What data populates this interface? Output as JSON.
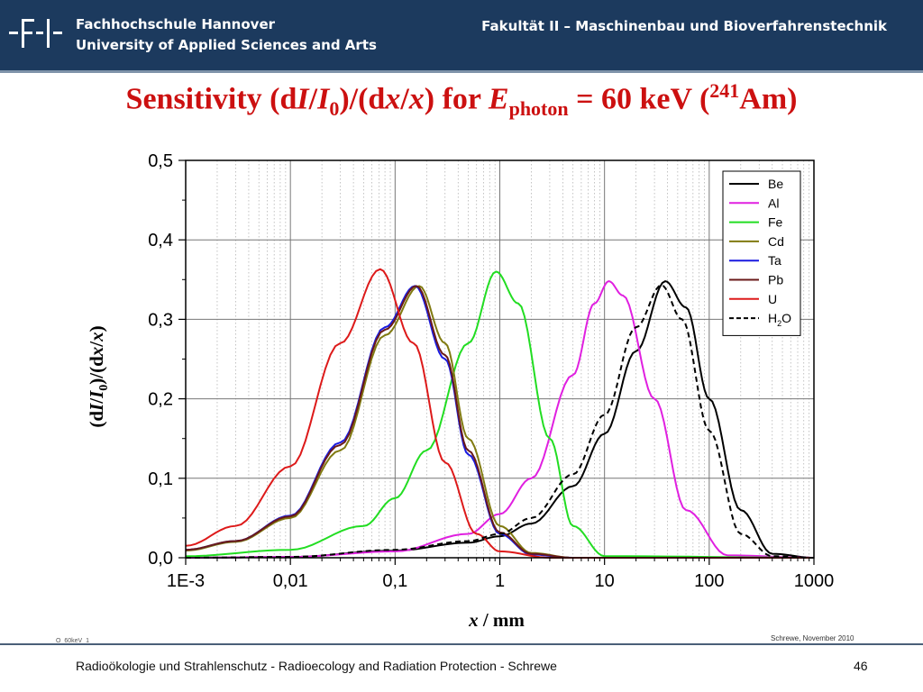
{
  "header": {
    "institution_line1": "Fachhochschule Hannover",
    "institution_line2": "University of Applied Sciences and Arts",
    "faculty": "Fakultät II – Maschinenbau und Bioverfahrenstechnik",
    "logo_text": "-F-I-"
  },
  "footer": {
    "text": "Radioökologie und Strahlenschutz - Radioecology and Radiation Protection - Schrewe",
    "page": "46",
    "credit": "Schrewe, November 2010",
    "slide_id": "O_60keV_1"
  },
  "colors": {
    "header_bg": "#1c3a5e",
    "title": "#cc1010",
    "Be": "#000000",
    "Al": "#e020e0",
    "Fe": "#22dd22",
    "Cd": "#807a10",
    "Ta": "#1a1ae0",
    "Pb": "#6a1a1a",
    "U": "#dd1a1a",
    "H2O": "#000000"
  },
  "chart_data": {
    "type": "line",
    "title_parts": {
      "a": "Sensitivity (d",
      "b": "I",
      "c": "/",
      "d": "I",
      "e": "0",
      "f": ")/(d",
      "g": "x",
      "h": "/",
      "i": "x",
      "j": ") for ",
      "k": "E",
      "l": "photon",
      "m": " = 60 keV (",
      "n": "241",
      "o": "Am)"
    },
    "xlabel_parts": {
      "a": "x",
      "b": " / mm"
    },
    "ylabel_parts": {
      "a": "(d",
      "b": "I",
      "c": "/",
      "d": "I",
      "e": "0",
      "f": ")/(d",
      "g": "x",
      "h": "/",
      "i": "x",
      "j": ")"
    },
    "x_scale": "log",
    "xlim": [
      0.001,
      1000
    ],
    "ylim": [
      0,
      0.5
    ],
    "x_ticks": [
      {
        "value": 0.001,
        "label": "1E-3"
      },
      {
        "value": 0.01,
        "label": "0,01"
      },
      {
        "value": 0.1,
        "label": "0,1"
      },
      {
        "value": 1,
        "label": "1"
      },
      {
        "value": 10,
        "label": "10"
      },
      {
        "value": 100,
        "label": "100"
      },
      {
        "value": 1000,
        "label": "1000"
      }
    ],
    "y_ticks": [
      {
        "value": 0.0,
        "label": "0,0"
      },
      {
        "value": 0.1,
        "label": "0,1"
      },
      {
        "value": 0.2,
        "label": "0,2"
      },
      {
        "value": 0.3,
        "label": "0,3"
      },
      {
        "value": 0.4,
        "label": "0,4"
      },
      {
        "value": 0.5,
        "label": "0,5"
      }
    ],
    "grid": true,
    "legend_position": "top-right",
    "series": [
      {
        "name": "Be",
        "peak_x": 38.0,
        "peak_y": 0.348,
        "dash": "solid",
        "x": [
          0.001,
          0.01,
          0.1,
          0.5,
          1,
          2,
          5,
          10,
          20,
          38,
          60,
          100,
          200,
          400,
          1000
        ],
        "y": [
          0.0,
          0.001,
          0.009,
          0.019,
          0.027,
          0.043,
          0.09,
          0.156,
          0.26,
          0.348,
          0.315,
          0.2,
          0.06,
          0.005,
          0.0
        ]
      },
      {
        "name": "Al",
        "peak_x": 11.0,
        "peak_y": 0.348,
        "dash": "solid",
        "x": [
          0.001,
          0.01,
          0.1,
          0.5,
          1,
          2,
          5,
          8,
          11,
          15,
          30,
          60,
          150,
          1000
        ],
        "y": [
          0.0,
          0.001,
          0.008,
          0.03,
          0.055,
          0.1,
          0.23,
          0.32,
          0.348,
          0.33,
          0.2,
          0.06,
          0.003,
          0.0
        ]
      },
      {
        "name": "Fe",
        "peak_x": 0.92,
        "peak_y": 0.36,
        "dash": "solid",
        "x": [
          0.001,
          0.01,
          0.05,
          0.1,
          0.2,
          0.5,
          0.92,
          1.5,
          3,
          5,
          10,
          1000
        ],
        "y": [
          0.002,
          0.01,
          0.04,
          0.075,
          0.135,
          0.27,
          0.36,
          0.32,
          0.15,
          0.04,
          0.002,
          0.0
        ]
      },
      {
        "name": "Cd",
        "peak_x": 0.17,
        "peak_y": 0.342,
        "dash": "solid",
        "x": [
          0.001,
          0.003,
          0.01,
          0.03,
          0.08,
          0.17,
          0.3,
          0.5,
          1,
          2,
          5,
          1000
        ],
        "y": [
          0.009,
          0.02,
          0.05,
          0.135,
          0.28,
          0.342,
          0.27,
          0.15,
          0.04,
          0.006,
          0.0,
          0.0
        ]
      },
      {
        "name": "Ta",
        "peak_x": 0.155,
        "peak_y": 0.342,
        "dash": "solid",
        "x": [
          0.001,
          0.003,
          0.01,
          0.03,
          0.08,
          0.155,
          0.3,
          0.5,
          1,
          2,
          5,
          1000
        ],
        "y": [
          0.01,
          0.021,
          0.053,
          0.145,
          0.29,
          0.342,
          0.25,
          0.13,
          0.03,
          0.004,
          0.0,
          0.0
        ]
      },
      {
        "name": "Pb",
        "peak_x": 0.16,
        "peak_y": 0.342,
        "dash": "solid",
        "x": [
          0.001,
          0.003,
          0.01,
          0.03,
          0.08,
          0.16,
          0.3,
          0.5,
          1,
          2,
          5,
          1000
        ],
        "y": [
          0.01,
          0.021,
          0.052,
          0.142,
          0.287,
          0.342,
          0.255,
          0.135,
          0.032,
          0.005,
          0.0,
          0.0
        ]
      },
      {
        "name": "U",
        "peak_x": 0.072,
        "peak_y": 0.363,
        "dash": "solid",
        "x": [
          0.001,
          0.003,
          0.01,
          0.03,
          0.072,
          0.15,
          0.3,
          0.6,
          1,
          3,
          1000
        ],
        "y": [
          0.015,
          0.04,
          0.115,
          0.27,
          0.363,
          0.27,
          0.12,
          0.03,
          0.008,
          0.0,
          0.0
        ]
      },
      {
        "name": "H",
        "name_sub": "2",
        "name_after": "O",
        "peak_x": 35.0,
        "peak_y": 0.343,
        "dash": "dashed",
        "x": [
          0.001,
          0.01,
          0.1,
          0.5,
          1,
          2,
          5,
          10,
          20,
          35,
          55,
          100,
          200,
          400,
          1000
        ],
        "y": [
          0.0,
          0.001,
          0.01,
          0.021,
          0.03,
          0.05,
          0.105,
          0.18,
          0.29,
          0.343,
          0.3,
          0.16,
          0.03,
          0.002,
          0.0
        ]
      }
    ]
  }
}
